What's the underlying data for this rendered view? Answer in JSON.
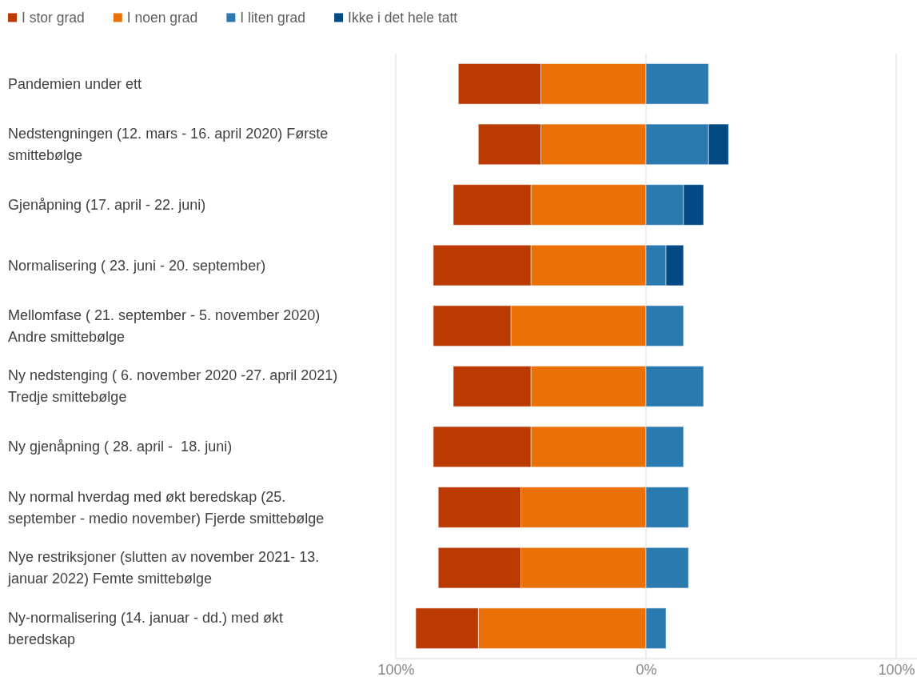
{
  "chart_data": {
    "type": "bar",
    "orientation": "horizontal",
    "stacked": true,
    "categories": [
      "Pandemien under ett",
      "Nedstengningen (12. mars - 16. april 2020) Første smittebølge",
      "Gjenåpning (17. april - 22. juni)",
      "Normalisering ( 23. juni - 20. september)",
      "Mellomfase ( 21. september - 5. november 2020) Andre smittebølge",
      "Ny nedstenging ( 6. november 2020 -27. april 2021) Tredje smittebølge",
      "Ny gjenåpning ( 28. april -  18. juni)",
      "Ny normal hverdag med økt beredskap (25. september - medio november) Fjerde smittebølge",
      "Nye restriksjoner (slutten av november 2021- 13. januar 2022) Femte smittebølge",
      "Ny-normalisering (14. januar - dd.) med økt beredskap"
    ],
    "series": [
      {
        "name": "I noen grad",
        "color": "#e97108",
        "values": [
          -42,
          -42,
          -46,
          -46,
          -54,
          -46,
          -46,
          -50,
          -50,
          -67
        ]
      },
      {
        "name": "I stor grad",
        "color": "#ba3a02",
        "values": [
          -33,
          -25,
          -31,
          -39,
          -31,
          -31,
          -39,
          -33,
          -33,
          -25
        ]
      },
      {
        "name": "I liten grad",
        "color": "#2a7ab0",
        "values": [
          25,
          25,
          15,
          8,
          15,
          23,
          15,
          17,
          17,
          8
        ]
      },
      {
        "name": "Ikke i det hele tatt",
        "color": "#034a84",
        "values": [
          null,
          8,
          8,
          7,
          null,
          null,
          null,
          null,
          null,
          null
        ]
      }
    ],
    "xlim": [
      -100,
      100
    ],
    "xticks": [
      {
        "value": -100,
        "label": "100%"
      },
      {
        "value": 0,
        "label": "0%"
      },
      {
        "value": 100,
        "label": "100%"
      }
    ],
    "grid": "x",
    "legend": "top left"
  }
}
